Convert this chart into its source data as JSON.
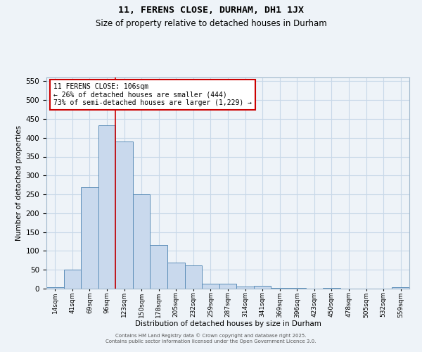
{
  "title": "11, FERENS CLOSE, DURHAM, DH1 1JX",
  "subtitle": "Size of property relative to detached houses in Durham",
  "xlabel": "Distribution of detached houses by size in Durham",
  "ylabel": "Number of detached properties",
  "categories": [
    "14sqm",
    "41sqm",
    "69sqm",
    "96sqm",
    "123sqm",
    "150sqm",
    "178sqm",
    "205sqm",
    "232sqm",
    "259sqm",
    "287sqm",
    "314sqm",
    "341sqm",
    "369sqm",
    "396sqm",
    "423sqm",
    "450sqm",
    "478sqm",
    "505sqm",
    "532sqm",
    "559sqm"
  ],
  "values": [
    3,
    51,
    268,
    433,
    391,
    250,
    116,
    70,
    61,
    14,
    13,
    5,
    7,
    1,
    1,
    0,
    1,
    0,
    0,
    0,
    3
  ],
  "bar_color": "#c9d9ed",
  "bar_edge_color": "#5b8db8",
  "grid_color": "#c8d8e8",
  "background_color": "#eef3f8",
  "vline_x_index": 3.5,
  "vline_color": "#cc0000",
  "annotation_text": "11 FERENS CLOSE: 106sqm\n← 26% of detached houses are smaller (444)\n73% of semi-detached houses are larger (1,229) →",
  "annotation_box_color": "#ffffff",
  "annotation_box_edge": "#cc0000",
  "ylim": [
    0,
    560
  ],
  "yticks": [
    0,
    50,
    100,
    150,
    200,
    250,
    300,
    350,
    400,
    450,
    500,
    550
  ],
  "footer_line1": "Contains HM Land Registry data © Crown copyright and database right 2025.",
  "footer_line2": "Contains public sector information licensed under the Open Government Licence 3.0."
}
